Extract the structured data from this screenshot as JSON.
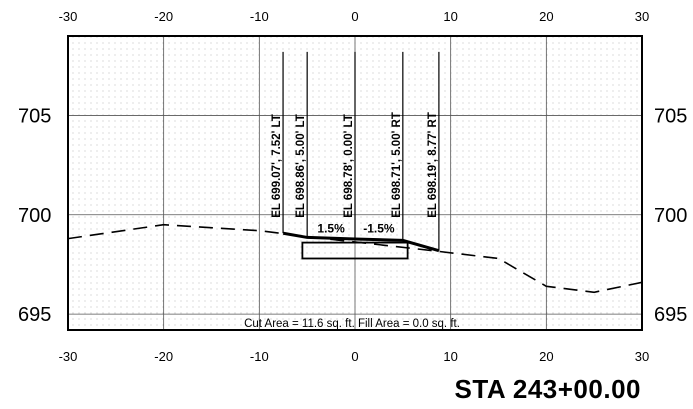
{
  "station_label": "STA 243+00.00",
  "area_text": "Cut Area = 11.6 sq. ft.   Fill Area = 0.0 sq. ft.",
  "chart_data": {
    "type": "cross-section",
    "xlim": [
      -30,
      30
    ],
    "ylim": [
      694.2,
      709.0
    ],
    "x_ticks": [
      -30,
      -20,
      -10,
      0,
      10,
      20,
      30
    ],
    "y_ticks": [
      695,
      700,
      705
    ],
    "grid": true,
    "existing_ground": [
      [
        -30,
        698.8
      ],
      [
        -20,
        699.5
      ],
      [
        -10,
        699.2
      ],
      [
        -5,
        698.9
      ],
      [
        8,
        698.2
      ],
      [
        15,
        697.8
      ],
      [
        20,
        696.4
      ],
      [
        25,
        696.1
      ],
      [
        30,
        696.6
      ]
    ],
    "proposed_surface": [
      [
        -7.5,
        699.07
      ],
      [
        -5.0,
        698.86
      ],
      [
        0,
        698.78
      ],
      [
        5.0,
        698.71
      ],
      [
        8.77,
        698.19
      ]
    ],
    "pavement_box": {
      "x": [
        -5.5,
        5.5
      ],
      "y": [
        697.8,
        698.6
      ]
    },
    "slope_labels": [
      {
        "text": "1.5%",
        "x": -2.5,
        "y": 699.1
      },
      {
        "text": "-1.5%",
        "x": 2.5,
        "y": 699.1
      }
    ],
    "offset_labels": [
      {
        "text": "EL 699.07', 7.52' LT",
        "x": -7.52
      },
      {
        "text": "EL 698.86', 5.00' LT",
        "x": -5.0
      },
      {
        "text": "EL 698.78', 0.00' LT",
        "x": 0.0
      },
      {
        "text": "EL 698.71', 5.00' RT",
        "x": 5.0
      },
      {
        "text": "EL 698.19', 8.77' RT",
        "x": 8.77
      }
    ]
  }
}
